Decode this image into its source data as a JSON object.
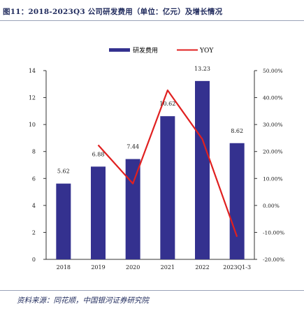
{
  "figure": {
    "title": "图11：2018-2023Q3 公司研发费用（单位：亿元）及增长情况",
    "source": "资料来源：同花顺，中国银河证券研究院"
  },
  "colors": {
    "bar": "#34318f",
    "line": "#e02020",
    "text": "#1a1a1a",
    "title": "#1f2a5c"
  },
  "chart_data": {
    "type": "bar",
    "title": "",
    "categories": [
      "2018",
      "2019",
      "2020",
      "2021",
      "2022",
      "2023Q1-3"
    ],
    "series": [
      {
        "name": "研发费用",
        "type": "bar",
        "axis": "left",
        "values": [
          5.62,
          6.88,
          7.44,
          10.62,
          13.23,
          8.62
        ]
      },
      {
        "name": "YOY",
        "type": "line",
        "axis": "right",
        "values": [
          null,
          22.4,
          8.1,
          42.7,
          24.6,
          -11.6
        ]
      }
    ],
    "value_labels": [
      "5.62",
      "6.88",
      "7.44",
      "10.62",
      "13.23",
      "8.62"
    ],
    "y_left": {
      "min": 0,
      "max": 14,
      "ticks": [
        "0",
        "2",
        "4",
        "6",
        "8",
        "10",
        "12",
        "14"
      ]
    },
    "y_right": {
      "min": -20,
      "max": 50,
      "ticks": [
        "-20.00%",
        "-10.00%",
        "0.00%",
        "10.00%",
        "20.00%",
        "30.00%",
        "40.00%",
        "50.00%"
      ]
    },
    "legend": {
      "position": "top-center",
      "entries": [
        "研发费用",
        "YOY"
      ]
    },
    "grid": false
  }
}
